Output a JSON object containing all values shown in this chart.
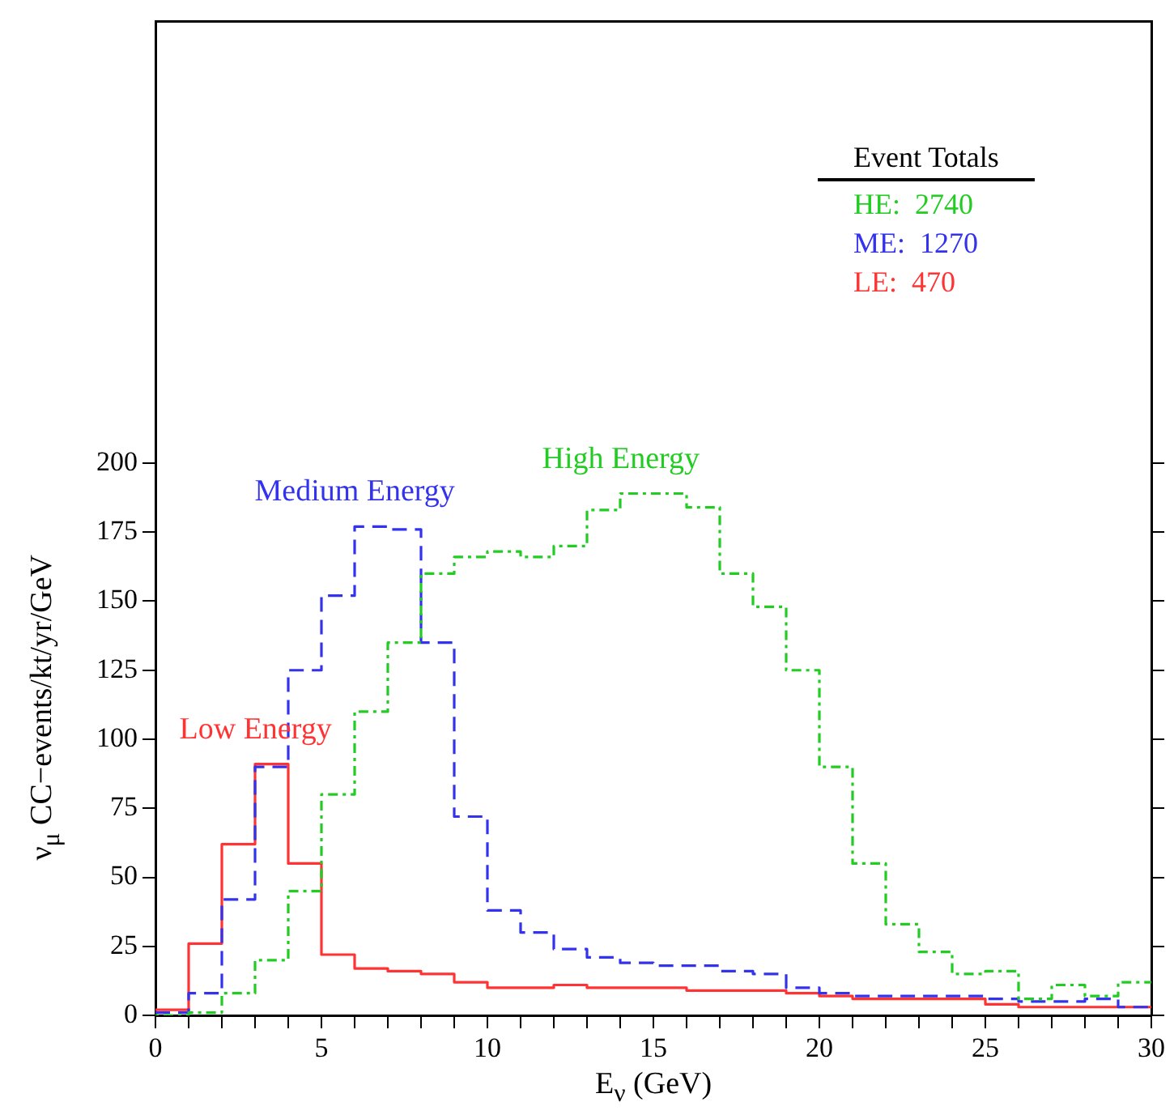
{
  "chart_data": {
    "type": "histogram",
    "xlabel": "E$_{ν}$ (GeV)",
    "ylabel": "ν$_{μ}$ CC−events/kt/yr/GeV",
    "bins": [
      0,
      1,
      2,
      3,
      4,
      5,
      6,
      7,
      8,
      9,
      10,
      11,
      12,
      13,
      14,
      15,
      16,
      17,
      18,
      19,
      20,
      21,
      22,
      23,
      24,
      25,
      26,
      27,
      28,
      29,
      30
    ],
    "series": [
      {
        "name": "High Energy",
        "color": "#22cc22",
        "line_style": "dotted",
        "values": [
          0,
          1,
          8,
          20,
          45,
          80,
          110,
          135,
          160,
          166,
          168,
          166,
          170,
          183,
          189,
          189,
          184,
          160,
          148,
          125,
          90,
          55,
          33,
          23,
          15,
          16,
          6,
          11,
          7,
          12
        ]
      },
      {
        "name": "Medium Energy",
        "color": "#3333ee",
        "line_style": "dashed",
        "values": [
          1,
          8,
          42,
          90,
          125,
          152,
          177,
          176,
          135,
          72,
          38,
          30,
          24,
          21,
          19,
          18,
          18,
          16,
          15,
          10,
          8,
          7,
          7,
          7,
          7,
          6,
          5,
          5,
          6,
          3
        ]
      },
      {
        "name": "Low Energy",
        "color": "#ff3333",
        "line_style": "solid",
        "values": [
          2,
          26,
          62,
          91,
          55,
          22,
          17,
          16,
          15,
          12,
          10,
          10,
          11,
          10,
          10,
          10,
          9,
          9,
          9,
          8,
          7,
          6,
          6,
          6,
          6,
          4,
          3,
          3,
          3,
          3
        ]
      }
    ],
    "xlim": [
      0,
      30
    ],
    "xticks": [
      0,
      {
        "value": 1,
        "label": null
      },
      {
        "value": 2,
        "label": null
      },
      {
        "value": 3,
        "label": null
      },
      {
        "value": 4,
        "label": null
      },
      5,
      {
        "value": 6,
        "label": null
      },
      {
        "value": 7,
        "label": null
      },
      {
        "value": 8,
        "label": null
      },
      {
        "value": 9,
        "label": null
      },
      10,
      {
        "value": 11,
        "label": null
      },
      {
        "value": 12,
        "label": null
      },
      {
        "value": 13,
        "label": null
      },
      {
        "value": 14,
        "label": null
      },
      15,
      {
        "value": 16,
        "label": null
      },
      {
        "value": 17,
        "label": null
      },
      {
        "value": 18,
        "label": null
      },
      {
        "value": 19,
        "label": null
      },
      20,
      {
        "value": 21,
        "label": null
      },
      {
        "value": 22,
        "label": null
      },
      {
        "value": 23,
        "label": null
      },
      {
        "value": 24,
        "label": null
      },
      25,
      {
        "value": 26,
        "label": null
      },
      {
        "value": 27,
        "label": null
      },
      {
        "value": 28,
        "label": null
      },
      {
        "value": 29,
        "label": null
      },
      30
    ],
    "ylim": [
      0,
      360
    ],
    "yticks": [
      0,
      25,
      50,
      75,
      100,
      125,
      150,
      175,
      200
    ],
    "annotations": [
      "Event Totals",
      "HE:  2740",
      "ME:  1270",
      "LE:  470"
    ],
    "grid": false,
    "legend": false
  }
}
